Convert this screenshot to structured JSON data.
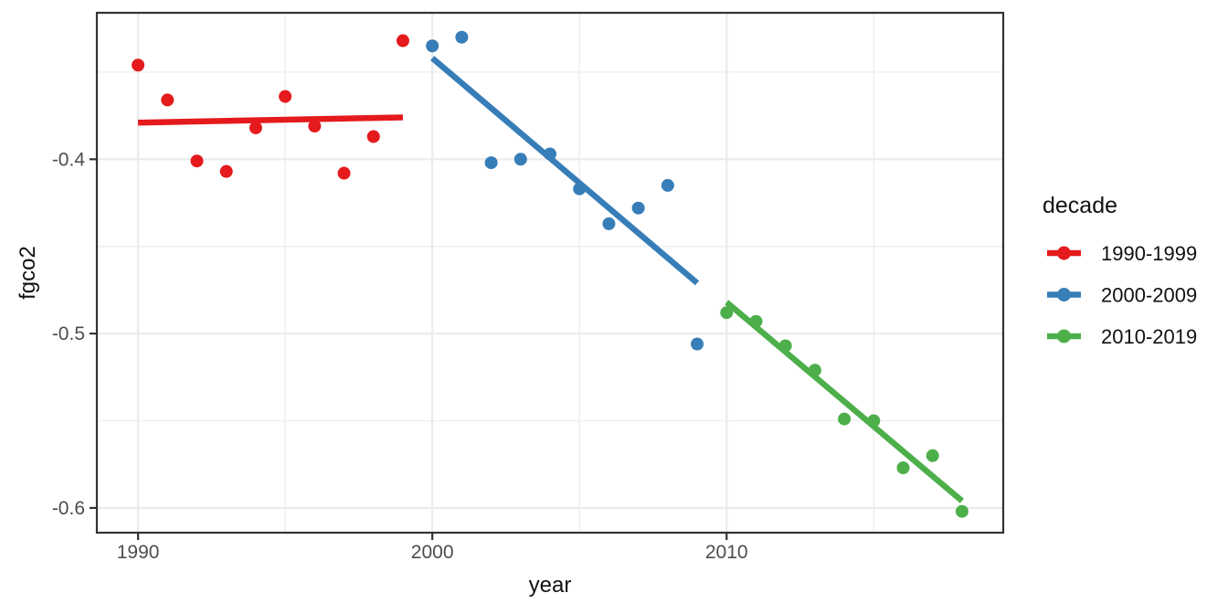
{
  "figure": {
    "background_color": "#ffffff",
    "panel_background_color": "#ffffff",
    "panel_border_color": "#333333",
    "grid_major_color": "#ebebeb",
    "grid_minor_color": "#f0f0f0",
    "tick_mark_color": "#333333",
    "tick_label_color": "#4d4d4d",
    "axis_title_color": "#111111",
    "legend_text_color": "#111111"
  },
  "chart_data": {
    "type": "scatter",
    "title": "",
    "xlabel": "year",
    "ylabel": "fgco2",
    "xlim": [
      1988.6,
      2019.4
    ],
    "ylim": [
      -0.6142,
      -0.316
    ],
    "grid": "major+minor",
    "x_major_ticks": [
      1990,
      2000,
      2010
    ],
    "x_tick_labels": [
      "1990",
      "2000",
      "2010"
    ],
    "x_minor_gridlines": [
      1995,
      2005,
      2015
    ],
    "y_major_ticks": [
      -0.4,
      -0.5,
      -0.6
    ],
    "y_tick_labels": [
      "-0.4",
      "-0.5",
      "-0.6"
    ],
    "y_minor_gridlines": [
      -0.35,
      -0.45,
      -0.55
    ],
    "legend": {
      "title": "decade",
      "position": "right"
    },
    "series": [
      {
        "name": "1990-1999",
        "color": "#E41A1C",
        "x": [
          1990,
          1991,
          1992,
          1993,
          1994,
          1995,
          1996,
          1997,
          1998,
          1999
        ],
        "y": [
          -0.346,
          -0.366,
          -0.401,
          -0.407,
          -0.382,
          -0.364,
          -0.381,
          -0.408,
          -0.387,
          -0.332
        ],
        "trend": {
          "x": [
            1990,
            1999
          ],
          "y": [
            -0.379,
            -0.376
          ]
        }
      },
      {
        "name": "2000-2009",
        "color": "#377EB8",
        "x": [
          2000,
          2001,
          2002,
          2003,
          2004,
          2005,
          2006,
          2007,
          2008,
          2009
        ],
        "y": [
          -0.335,
          -0.33,
          -0.402,
          -0.4,
          -0.397,
          -0.417,
          -0.437,
          -0.428,
          -0.415,
          -0.506
        ],
        "trend": {
          "x": [
            2000,
            2009
          ],
          "y": [
            -0.342,
            -0.471
          ]
        }
      },
      {
        "name": "2010-2019",
        "color": "#4DAF4A",
        "x": [
          2010,
          2011,
          2012,
          2013,
          2014,
          2015,
          2016,
          2017,
          2018
        ],
        "y": [
          -0.488,
          -0.493,
          -0.507,
          -0.521,
          -0.549,
          -0.55,
          -0.577,
          -0.57,
          -0.602
        ],
        "trend": {
          "x": [
            2010,
            2018
          ],
          "y": [
            -0.482,
            -0.596
          ]
        }
      }
    ]
  }
}
